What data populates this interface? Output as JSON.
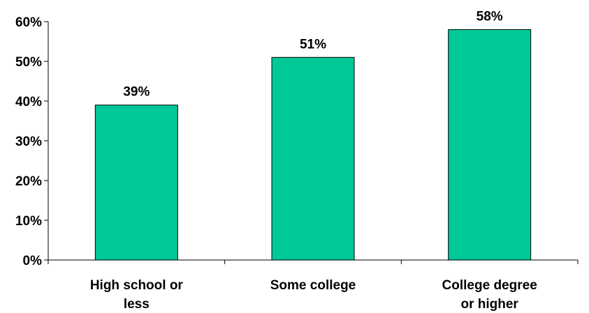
{
  "chart_data": {
    "type": "bar",
    "categories": [
      [
        "High school or",
        "less"
      ],
      [
        "Some college"
      ],
      [
        "College degree",
        "or higher"
      ]
    ],
    "values": [
      39,
      51,
      58
    ],
    "data_labels": [
      "39%",
      "51%",
      "58%"
    ],
    "ylim": [
      0,
      60
    ],
    "yticks": [
      0,
      10,
      20,
      30,
      40,
      50,
      60
    ],
    "ytick_labels": [
      "0%",
      "10%",
      "20%",
      "30%",
      "40%",
      "50%",
      "60%"
    ],
    "title": "",
    "xlabel": "",
    "ylabel": "",
    "grid": false,
    "legend": "none",
    "bar_color": "#00c896",
    "bar_edge_color": "#000000"
  }
}
